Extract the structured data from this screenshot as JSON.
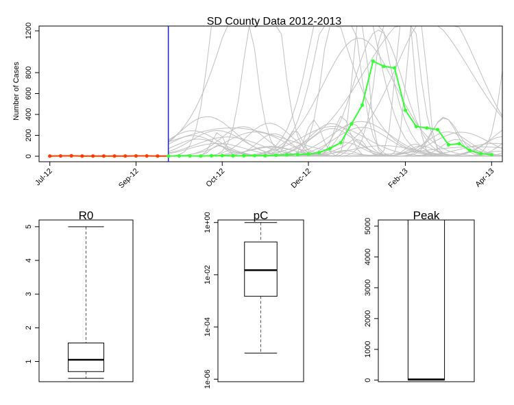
{
  "chart_data": [
    {
      "type": "line",
      "title": "SD County Data 2012-2013",
      "xlabel": "",
      "ylabel": "Number of Cases",
      "ylim": [
        0,
        1200
      ],
      "y_ticks": [
        0,
        200,
        400,
        600,
        800,
        1200
      ],
      "x_ticks": [
        "Jul-12",
        "Sep-12",
        "Oct-12",
        "Dec-12",
        "Feb-13",
        "Apr-13"
      ],
      "x_tick_weeks": [
        0,
        8,
        16,
        24,
        33,
        41
      ],
      "forecast_start_week": 11,
      "colors": {
        "observed": "#ff3b00",
        "future": "#33ff33",
        "cutoff": "#1a1aff",
        "simulations": "#c0c0c0"
      },
      "series": [
        {
          "values_note": "",
          "x": [
            0,
            1,
            2,
            3,
            4,
            5,
            6,
            7,
            8,
            9,
            10,
            11
          ],
          "y": [
            2,
            3,
            4,
            2,
            2,
            2,
            2,
            2,
            3,
            3,
            2,
            2
          ]
        },
        {
          "x": [
            11,
            12,
            13,
            14,
            15,
            16,
            17,
            18,
            19,
            20,
            21,
            22,
            23,
            24,
            25,
            26,
            27,
            28,
            29,
            30,
            31,
            32,
            33,
            34,
            35,
            36,
            37,
            38,
            39,
            40,
            41
          ],
          "y": [
            2,
            3,
            3,
            2,
            5,
            6,
            4,
            5,
            6,
            5,
            10,
            13,
            17,
            20,
            35,
            75,
            130,
            310,
            490,
            910,
            860,
            845,
            440,
            285,
            270,
            255,
            110,
            120,
            55,
            25,
            15
          ]
        }
      ]
    },
    {
      "type": "box",
      "title": "R0",
      "ylim": [
        0.4,
        5.2
      ],
      "y_ticks": [
        1,
        2,
        3,
        4,
        5
      ],
      "whisker_low": 0.5,
      "q1": 0.7,
      "median": 1.05,
      "q3": 1.55,
      "whisker_high": 5.0
    },
    {
      "type": "box",
      "title": "pC",
      "scale": "log",
      "ylim": [
        8e-07,
        1.25
      ],
      "y_ticks": [
        "1e-06",
        "1e-04",
        "1e-02",
        "1e+00"
      ],
      "y_tick_values": [
        1e-06,
        0.0001,
        0.01,
        1
      ],
      "whisker_low": 1e-05,
      "q1": 0.0015,
      "median": 0.015,
      "q3": 0.18,
      "whisker_high": 1.0
    },
    {
      "type": "box",
      "title": "Peak",
      "ylim": [
        -50,
        5200
      ],
      "y_ticks": [
        0,
        1000,
        2000,
        3000,
        4000,
        5000
      ],
      "whisker_low": 0,
      "q1": 10,
      "median": 25,
      "q3": 5200,
      "whisker_high": 5200
    }
  ]
}
